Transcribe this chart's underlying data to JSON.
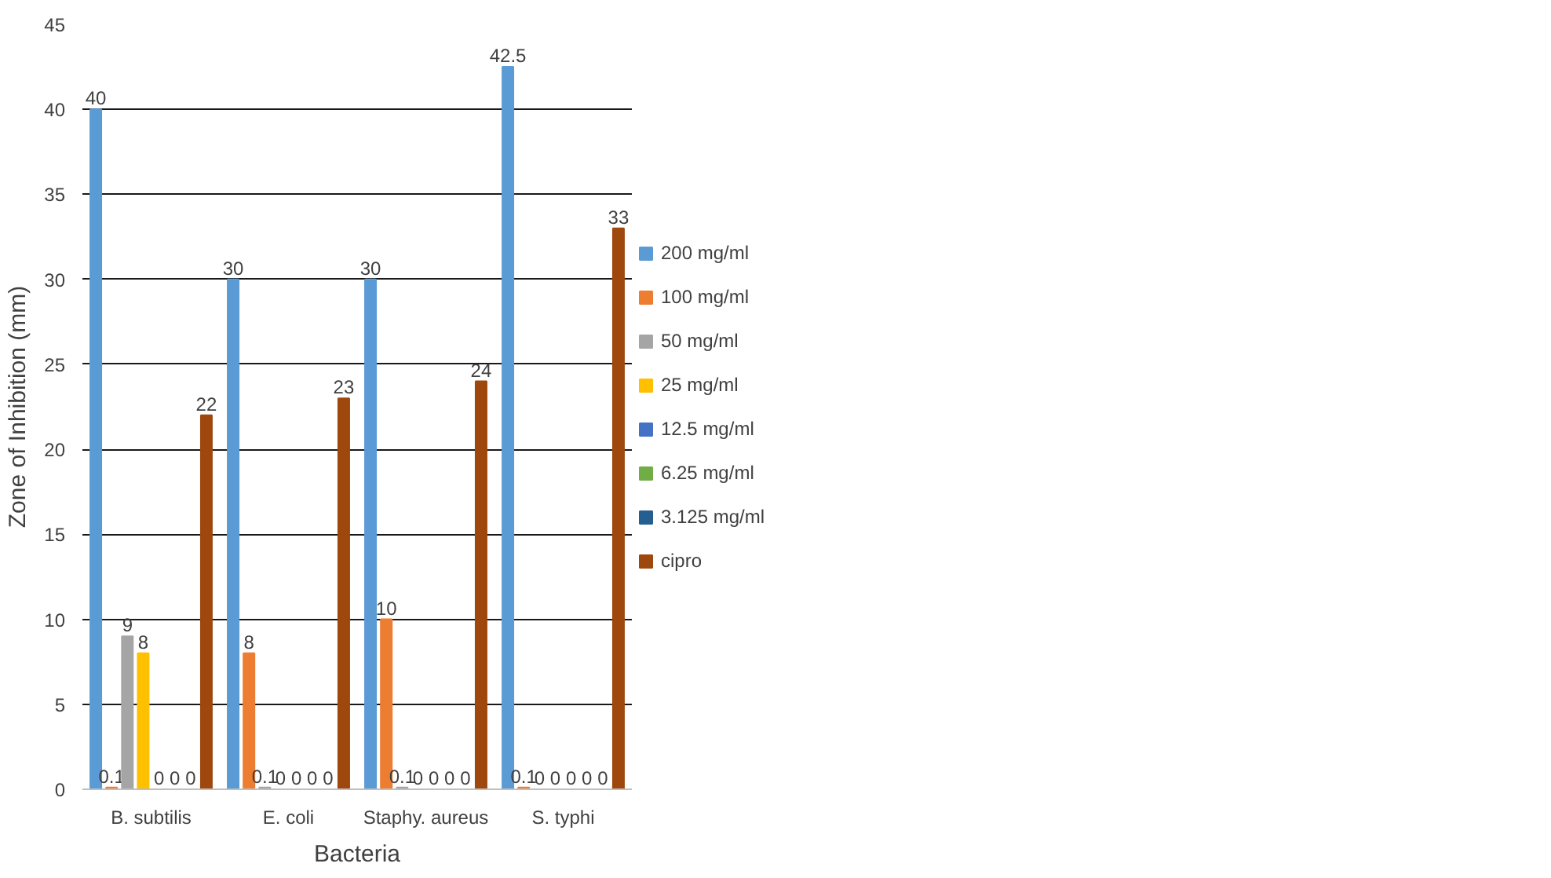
{
  "chart_data": {
    "type": "bar",
    "xlabel": "Bacteria",
    "ylabel": "Zone of Inhibition (mm)",
    "categories": [
      "B. subtilis",
      "E. coli",
      "Staphy. aureus",
      "S. typhi"
    ],
    "series": [
      {
        "name": "200 mg/ml",
        "color": "#5b9bd5",
        "values": [
          40,
          30,
          30,
          42.5
        ]
      },
      {
        "name": "100 mg/ml",
        "color": "#ed7d31",
        "values": [
          0.1,
          8,
          10,
          0.1
        ]
      },
      {
        "name": "50 mg/ml",
        "color": "#a5a5a5",
        "values": [
          9,
          0.1,
          0.1,
          0
        ]
      },
      {
        "name": "25 mg/ml",
        "color": "#ffc000",
        "values": [
          8,
          0,
          0,
          0
        ]
      },
      {
        "name": "12.5 mg/ml",
        "color": "#4472c4",
        "values": [
          0,
          0,
          0,
          0
        ]
      },
      {
        "name": "6.25 mg/ml",
        "color": "#70ad47",
        "values": [
          0,
          0,
          0,
          0
        ]
      },
      {
        "name": "3.125 mg/ml",
        "color": "#255e91",
        "values": [
          0,
          0,
          0,
          0
        ]
      },
      {
        "name": "cipro",
        "color": "#9e480e",
        "values": [
          22,
          23,
          24,
          33
        ]
      }
    ],
    "ylim": [
      0,
      45
    ],
    "yticks": [
      0,
      5,
      10,
      15,
      20,
      25,
      30,
      35,
      40,
      45
    ],
    "grid": "y",
    "legend": "right",
    "data_labels": true
  }
}
